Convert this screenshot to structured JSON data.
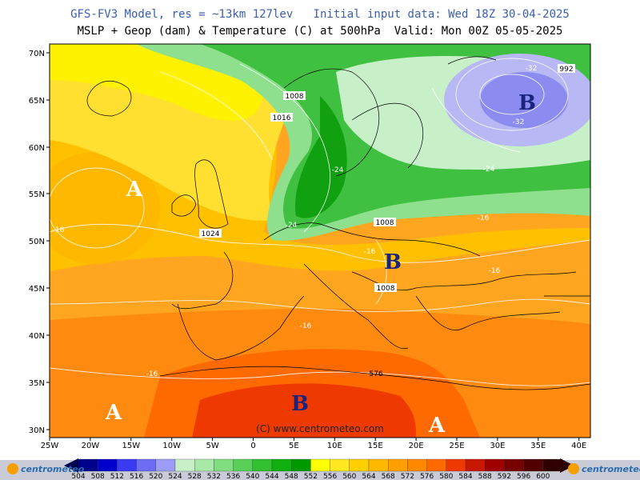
{
  "header": {
    "line1": "GFS-FV3 Model, res = ~13km 127lev   Initial input data: Wed 18Z 30-04-2025",
    "line2": "MSLP + Geop (dam) & Temperature (C) at 500hPa  Valid: Mon 00Z 05-05-2025"
  },
  "map": {
    "lat_labels": [
      "70N",
      "65N",
      "60N",
      "55N",
      "50N",
      "45N",
      "40N",
      "35N",
      "30N"
    ],
    "lon_labels": [
      "25W",
      "20W",
      "15W",
      "10W",
      "5W",
      "0",
      "5E",
      "10E",
      "15E",
      "20E",
      "25E",
      "30E",
      "35E",
      "40E"
    ],
    "pressure_labels": [
      "1008",
      "1016",
      "1024",
      "1008",
      "1008",
      "992"
    ],
    "temperature_labels": [
      "-32",
      "-32",
      "-24",
      "-24",
      "-24",
      "-16",
      "-16",
      "-16",
      "-16",
      "-16",
      "-16"
    ],
    "height_label": "576",
    "pressure_systems": [
      "A",
      "A",
      "A",
      "B",
      "B",
      "B"
    ],
    "watermark": "(C) www.centrometeo.com"
  },
  "colorbar": {
    "values": [
      "504",
      "508",
      "512",
      "516",
      "520",
      "524",
      "528",
      "532",
      "536",
      "540",
      "544",
      "548",
      "552",
      "556",
      "560",
      "564",
      "568",
      "572",
      "576",
      "580",
      "584",
      "588",
      "592",
      "596",
      "600"
    ],
    "colors": [
      "#00008b",
      "#0000cd",
      "#3a3af0",
      "#6c6cf5",
      "#9c9cf7",
      "#c8f0c8",
      "#a8e8a8",
      "#80dd80",
      "#58d058",
      "#30c030",
      "#10b010",
      "#009900",
      "#ffff00",
      "#ffe820",
      "#ffd000",
      "#ffb800",
      "#ffa000",
      "#ff8800",
      "#ff6a00",
      "#ee3a00",
      "#c81800",
      "#a00000",
      "#780000",
      "#500000",
      "#300000"
    ],
    "logo_text": "centrometeo"
  }
}
